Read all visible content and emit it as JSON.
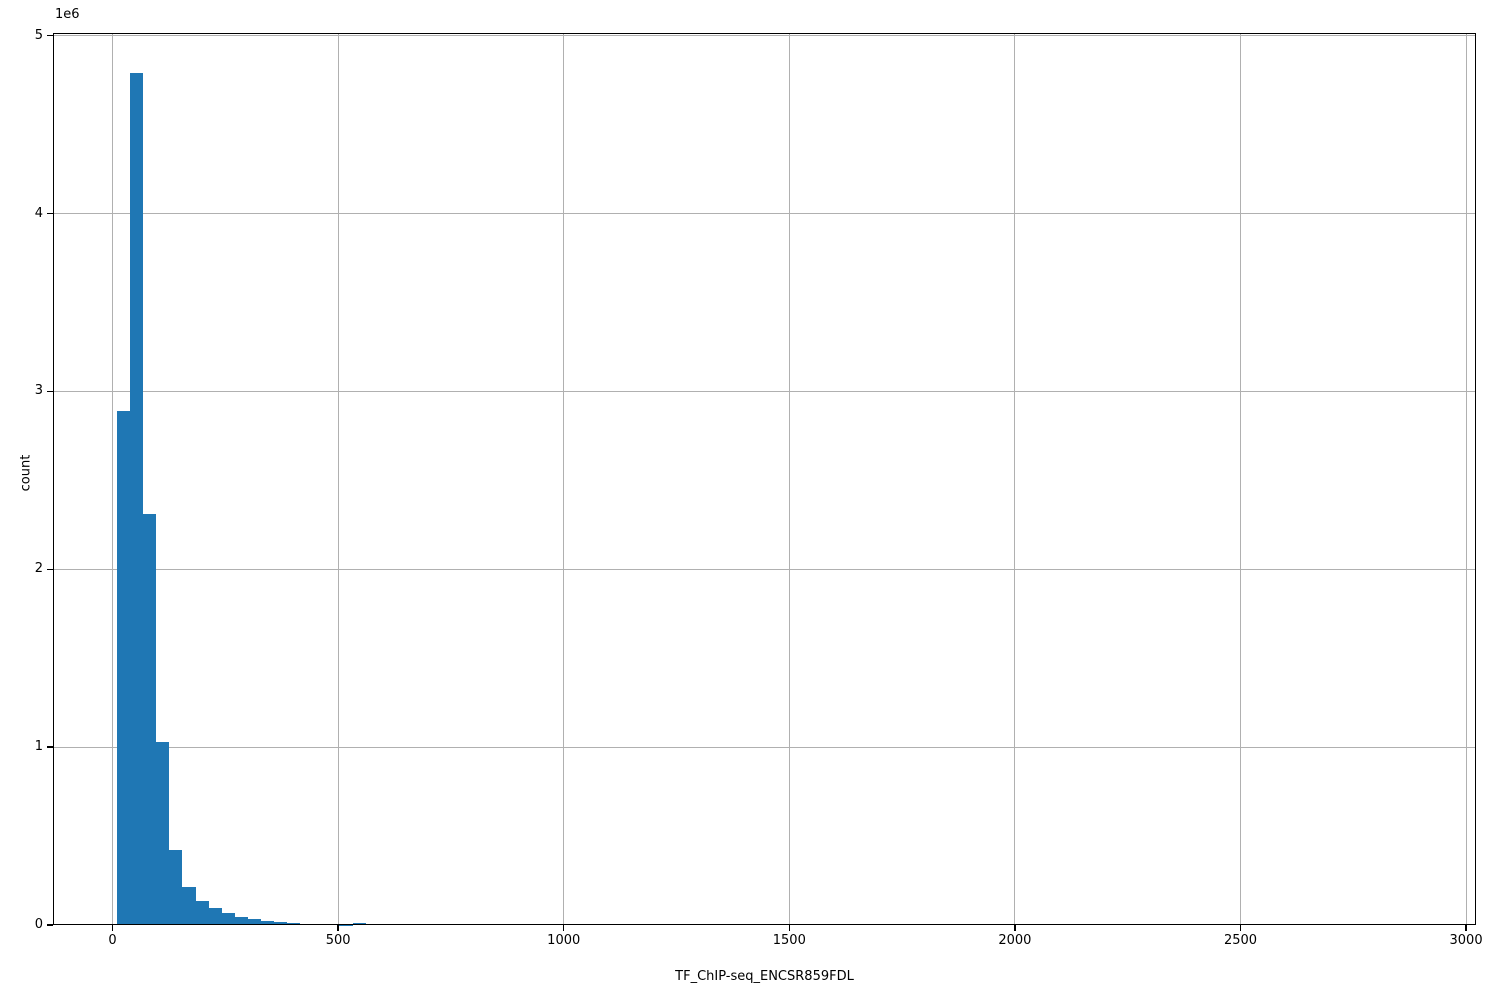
{
  "chart_data": {
    "type": "bar",
    "subtype": "histogram",
    "title": "",
    "xlabel": "TF_ChIP-seq_ENCSR859FDL",
    "ylabel": "count",
    "y_offset_text": "1e6",
    "legend_position": "none",
    "grid": true,
    "grid_color": "#b0b0b0",
    "bar_color": "#1f77b4",
    "spine_color": "#000000",
    "background_color": "#ffffff",
    "xlim": [
      -132,
      3022
    ],
    "ylim": [
      0,
      5015000
    ],
    "x_ticks": [
      {
        "label": "0",
        "value": 0
      },
      {
        "label": "500",
        "value": 500
      },
      {
        "label": "1000",
        "value": 1000
      },
      {
        "label": "1500",
        "value": 1500
      },
      {
        "label": "2000",
        "value": 2000
      },
      {
        "label": "2500",
        "value": 2500
      },
      {
        "label": "3000",
        "value": 3000
      }
    ],
    "y_ticks": [
      {
        "label": "0",
        "value": 0
      },
      {
        "label": "1",
        "value": 1000000
      },
      {
        "label": "2",
        "value": 2000000
      },
      {
        "label": "3",
        "value": 3000000
      },
      {
        "label": "4",
        "value": 4000000
      },
      {
        "label": "5",
        "value": 5000000
      }
    ],
    "bins": {
      "start": 10,
      "width": 29
    },
    "counts": [
      2890000,
      4790000,
      2310000,
      1030000,
      420000,
      215000,
      135000,
      98000,
      68000,
      47000,
      32000,
      22000,
      15000,
      10000,
      7000,
      4500,
      3000,
      1500,
      12000
    ]
  }
}
